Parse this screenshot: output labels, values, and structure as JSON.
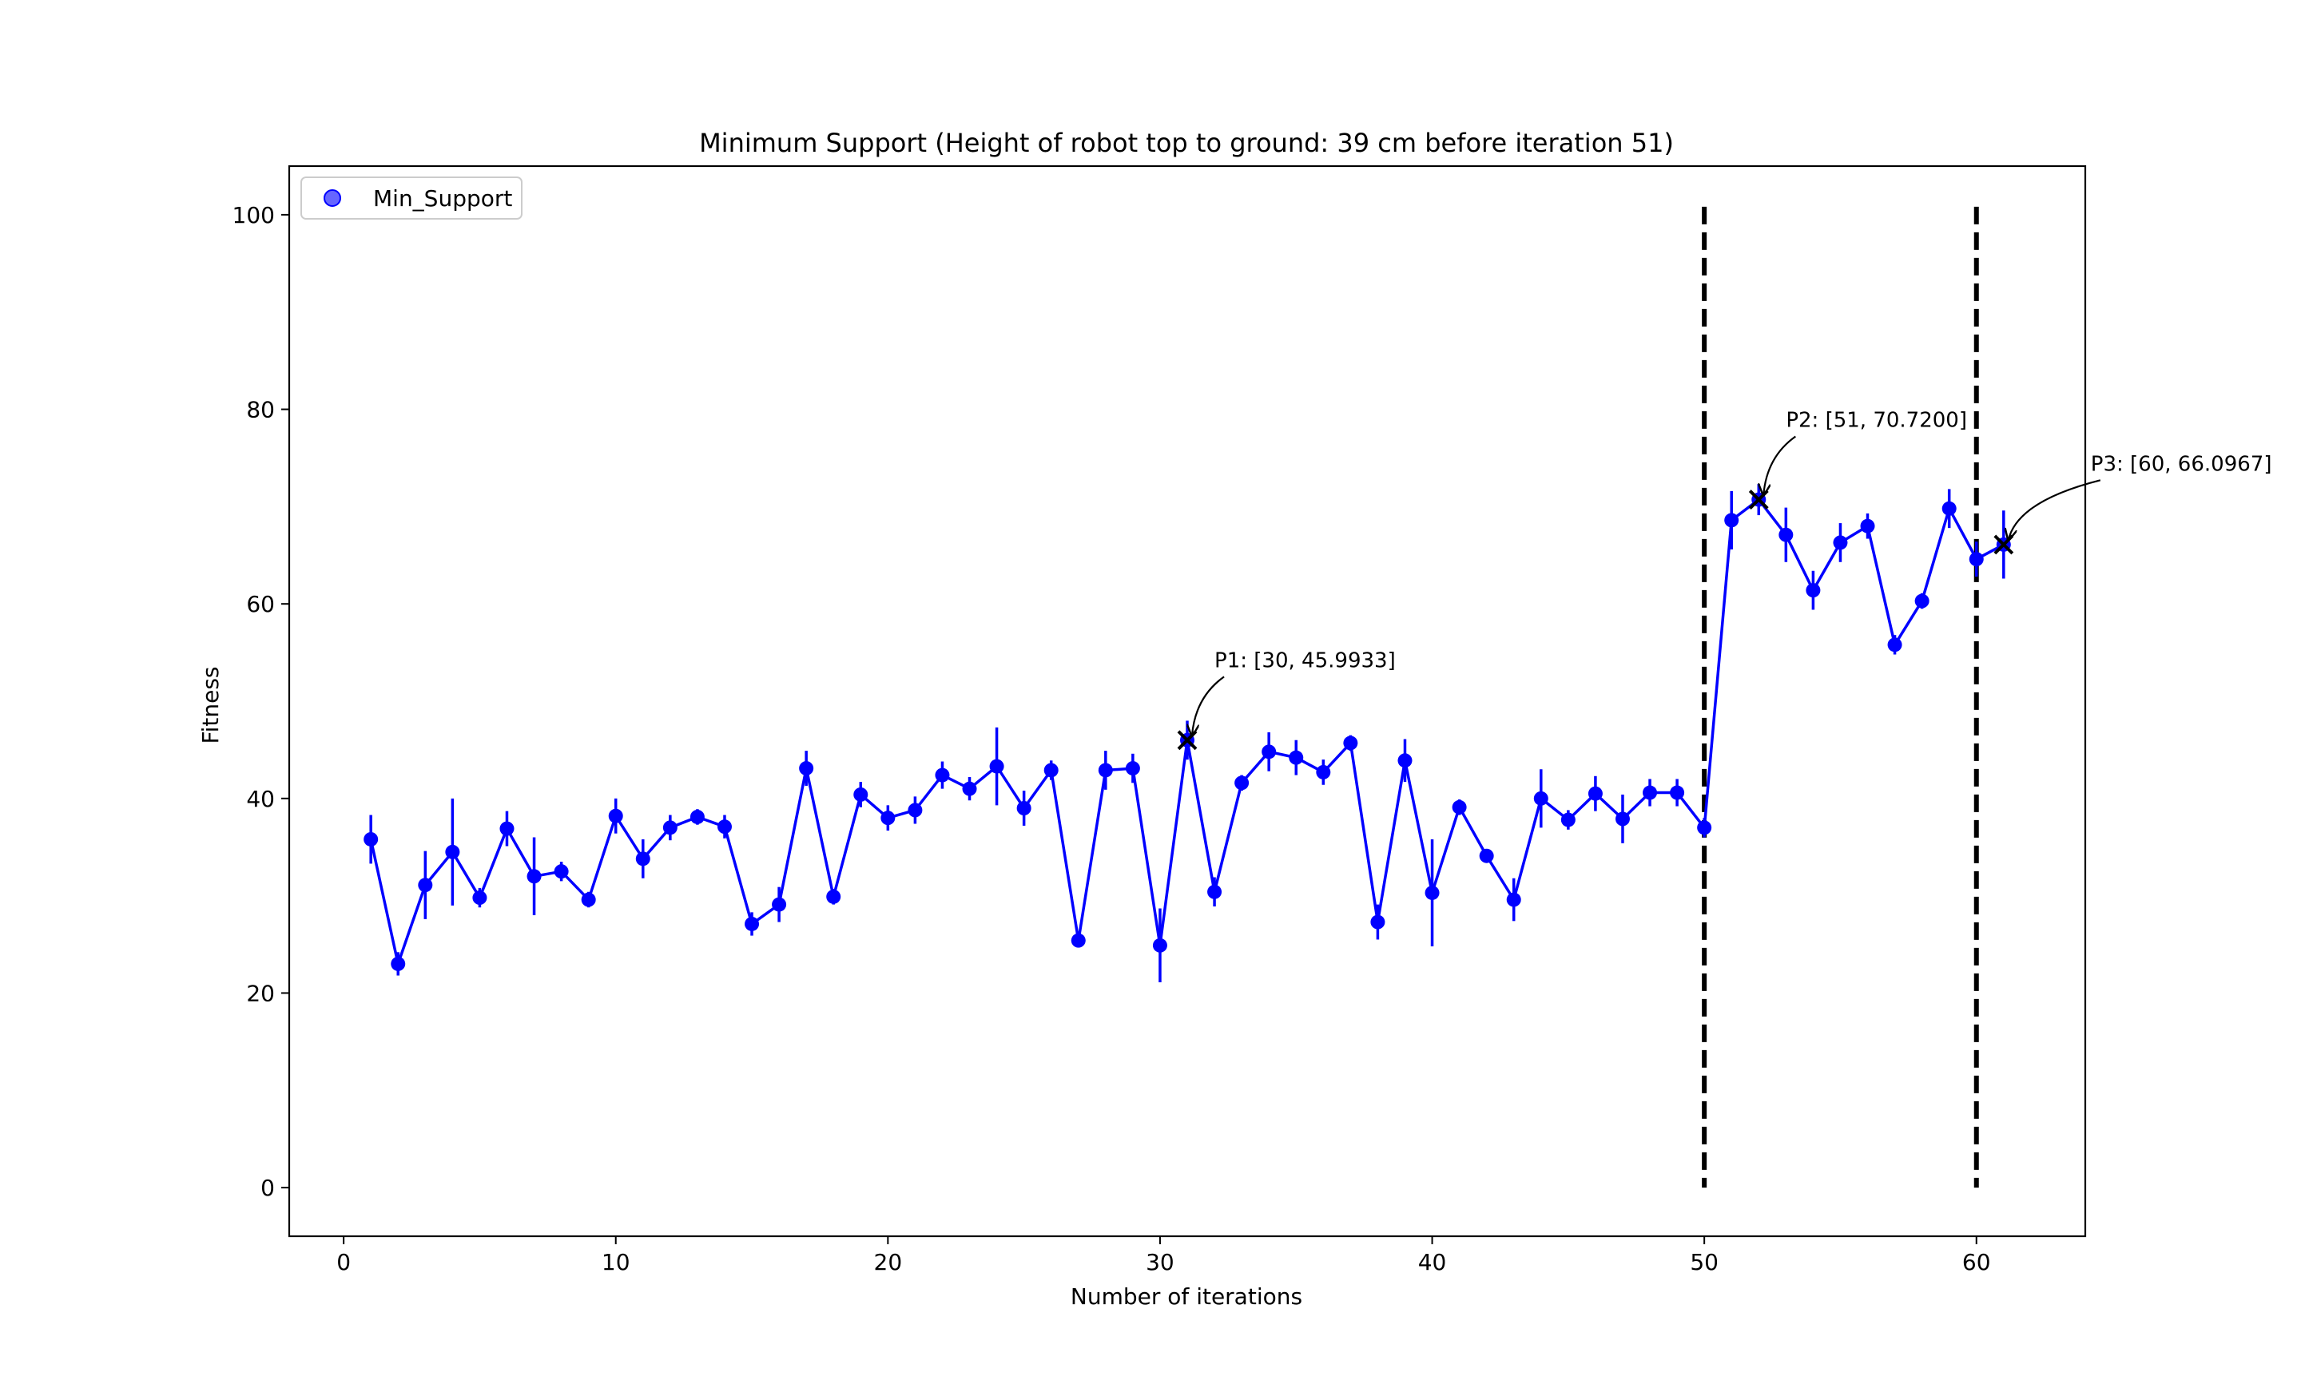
{
  "chart_data": {
    "type": "line",
    "title": "Minimum Support (Height of robot top to ground: 39 cm before iteration 51)",
    "xlabel": "Number of iterations",
    "ylabel": "Fitness",
    "xlim": [
      -2,
      64
    ],
    "ylim": [
      -5,
      105
    ],
    "xticks": [
      0,
      10,
      20,
      30,
      40,
      50,
      60
    ],
    "xtick_labels": [
      "0",
      "10",
      "20",
      "30",
      "40",
      "50",
      "60"
    ],
    "yticks": [
      0,
      20,
      40,
      60,
      80,
      100
    ],
    "ytick_labels": [
      "0",
      "20",
      "40",
      "60",
      "80",
      "100"
    ],
    "grid": false,
    "legend": {
      "position": "top-left",
      "entries": [
        "Min_Support"
      ]
    },
    "series": [
      {
        "name": "Min_Support",
        "color": "#0000ff",
        "x": [
          1,
          2,
          3,
          4,
          5,
          6,
          7,
          8,
          9,
          10,
          11,
          12,
          13,
          14,
          15,
          16,
          17,
          18,
          19,
          20,
          21,
          22,
          23,
          24,
          25,
          26,
          27,
          28,
          29,
          30,
          31,
          32,
          33,
          34,
          35,
          36,
          37,
          38,
          39,
          40,
          41,
          42,
          43,
          44,
          45,
          46,
          47,
          48,
          49,
          50,
          51,
          52,
          53,
          54,
          55,
          56,
          57,
          58,
          59,
          60,
          61
        ],
        "y": [
          35.8,
          23.0,
          31.1,
          34.5,
          29.8,
          36.9,
          32.0,
          32.5,
          29.6,
          38.2,
          33.8,
          37.0,
          38.1,
          37.1,
          27.1,
          29.1,
          43.1,
          29.9,
          40.4,
          38.0,
          38.8,
          42.4,
          41.0,
          43.3,
          39.0,
          42.9,
          25.4,
          42.9,
          43.1,
          24.9,
          45.9933,
          30.4,
          41.6,
          44.8,
          44.2,
          42.7,
          45.7,
          27.3,
          43.9,
          30.3,
          39.1,
          34.1,
          29.6,
          40.0,
          37.8,
          40.5,
          37.9,
          40.6,
          40.6,
          37.0,
          68.6,
          70.72,
          67.1,
          61.4,
          66.3,
          68.0,
          55.8,
          60.3,
          69.8,
          64.6,
          66.0967
        ],
        "err": [
          2.5,
          1.2,
          3.5,
          5.5,
          1.0,
          1.8,
          4.0,
          1.0,
          0.8,
          1.8,
          2.0,
          1.3,
          0.8,
          1.2,
          1.2,
          1.8,
          1.8,
          0.8,
          1.3,
          1.3,
          1.4,
          1.4,
          1.2,
          4.0,
          1.8,
          1.0,
          0.7,
          2.0,
          1.5,
          3.8,
          2.0,
          1.5,
          0.8,
          2.0,
          1.8,
          1.3,
          0.8,
          1.8,
          2.2,
          5.5,
          0.8,
          0.7,
          2.2,
          3.0,
          1.0,
          1.8,
          2.5,
          1.4,
          1.4,
          1.0,
          3.0,
          1.6,
          2.8,
          2.0,
          2.0,
          1.3,
          1.0,
          0.8,
          2.0,
          1.8,
          3.5
        ]
      }
    ],
    "vlines": [
      {
        "x": 50,
        "y0": 0,
        "y1": 100,
        "style": "dashed",
        "color": "#000000"
      },
      {
        "x": 60,
        "y0": 0,
        "y1": 100,
        "style": "dashed",
        "color": "#000000"
      }
    ],
    "annotations": [
      {
        "label": "P1: [30, 45.9933]",
        "x": 31,
        "y": 45.9933,
        "text_x": 32,
        "text_y": 53.5
      },
      {
        "label": "P2: [51, 70.7200]",
        "x": 52,
        "y": 70.72,
        "text_x": 53,
        "text_y": 78.2
      },
      {
        "label": "P3: [60, 66.0967]",
        "x": 61,
        "y": 66.0967,
        "text_x": 64.2,
        "text_y": 73.7
      }
    ]
  }
}
